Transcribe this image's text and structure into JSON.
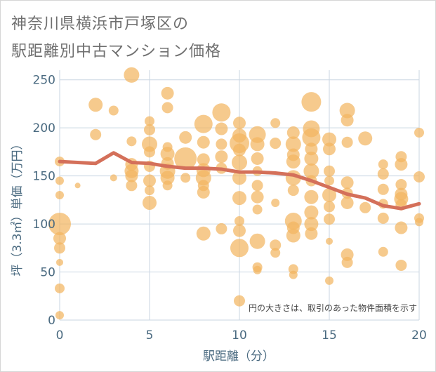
{
  "title_line1": "神奈川県横浜市戸塚区の",
  "title_line2": "駅距離別中古マンション価格",
  "chart_data": {
    "type": "scatter",
    "xlabel": "駅距離（分）",
    "ylabel": "坪（3.3㎡）単価（万円）",
    "xlim": [
      0,
      20
    ],
    "ylim": [
      0,
      260
    ],
    "x_ticks": [
      0,
      5,
      10,
      15,
      20
    ],
    "y_ticks": [
      0,
      50,
      100,
      150,
      200,
      250
    ],
    "grid": true,
    "annotation": "円の大きさは、取引のあった物件面積を示す",
    "colors": {
      "bubble": "#f2b661",
      "line": "#d4705a",
      "grid": "#c9d6e2",
      "text": "#555555",
      "axis_text": "#4a6a80"
    },
    "series": [
      {
        "kind": "bubble",
        "points": [
          {
            "x": 0,
            "y": 165,
            "s": 7
          },
          {
            "x": 0,
            "y": 145,
            "s": 6
          },
          {
            "x": 0,
            "y": 130,
            "s": 6
          },
          {
            "x": 0,
            "y": 100,
            "s": 16
          },
          {
            "x": 0,
            "y": 85,
            "s": 9
          },
          {
            "x": 0,
            "y": 75,
            "s": 8
          },
          {
            "x": 0,
            "y": 60,
            "s": 5
          },
          {
            "x": 0,
            "y": 33,
            "s": 7
          },
          {
            "x": 0,
            "y": 5,
            "s": 6
          },
          {
            "x": 1,
            "y": 140,
            "s": 4
          },
          {
            "x": 2,
            "y": 224,
            "s": 10
          },
          {
            "x": 2,
            "y": 193,
            "s": 8
          },
          {
            "x": 3,
            "y": 218,
            "s": 7
          },
          {
            "x": 3,
            "y": 148,
            "s": 5
          },
          {
            "x": 4,
            "y": 255,
            "s": 11
          },
          {
            "x": 4,
            "y": 186,
            "s": 7
          },
          {
            "x": 4,
            "y": 162,
            "s": 9
          },
          {
            "x": 4,
            "y": 155,
            "s": 10
          },
          {
            "x": 4,
            "y": 150,
            "s": 9
          },
          {
            "x": 4,
            "y": 140,
            "s": 8
          },
          {
            "x": 5,
            "y": 207,
            "s": 7
          },
          {
            "x": 5,
            "y": 198,
            "s": 8
          },
          {
            "x": 5,
            "y": 183,
            "s": 11
          },
          {
            "x": 5,
            "y": 175,
            "s": 8
          },
          {
            "x": 5,
            "y": 160,
            "s": 8
          },
          {
            "x": 5,
            "y": 145,
            "s": 9
          },
          {
            "x": 5,
            "y": 135,
            "s": 7
          },
          {
            "x": 5,
            "y": 122,
            "s": 10
          },
          {
            "x": 6,
            "y": 236,
            "s": 9
          },
          {
            "x": 6,
            "y": 221,
            "s": 8
          },
          {
            "x": 6,
            "y": 180,
            "s": 7
          },
          {
            "x": 6,
            "y": 173,
            "s": 10
          },
          {
            "x": 6,
            "y": 163,
            "s": 9
          },
          {
            "x": 6,
            "y": 155,
            "s": 11
          },
          {
            "x": 6,
            "y": 148,
            "s": 10
          },
          {
            "x": 6,
            "y": 140,
            "s": 7
          },
          {
            "x": 7,
            "y": 190,
            "s": 9
          },
          {
            "x": 7,
            "y": 168,
            "s": 16
          },
          {
            "x": 7,
            "y": 148,
            "s": 7
          },
          {
            "x": 8,
            "y": 204,
            "s": 13
          },
          {
            "x": 8,
            "y": 185,
            "s": 9
          },
          {
            "x": 8,
            "y": 167,
            "s": 9
          },
          {
            "x": 8,
            "y": 156,
            "s": 10
          },
          {
            "x": 8,
            "y": 148,
            "s": 11
          },
          {
            "x": 8,
            "y": 140,
            "s": 8
          },
          {
            "x": 8,
            "y": 133,
            "s": 9
          },
          {
            "x": 8,
            "y": 90,
            "s": 10
          },
          {
            "x": 9,
            "y": 216,
            "s": 13
          },
          {
            "x": 9,
            "y": 199,
            "s": 9
          },
          {
            "x": 9,
            "y": 183,
            "s": 8
          },
          {
            "x": 9,
            "y": 170,
            "s": 9
          },
          {
            "x": 9,
            "y": 158,
            "s": 8
          },
          {
            "x": 9,
            "y": 95,
            "s": 8
          },
          {
            "x": 10,
            "y": 205,
            "s": 9
          },
          {
            "x": 10,
            "y": 192,
            "s": 10
          },
          {
            "x": 10,
            "y": 184,
            "s": 14
          },
          {
            "x": 10,
            "y": 177,
            "s": 9
          },
          {
            "x": 10,
            "y": 164,
            "s": 11
          },
          {
            "x": 10,
            "y": 148,
            "s": 10
          },
          {
            "x": 10,
            "y": 127,
            "s": 10
          },
          {
            "x": 10,
            "y": 103,
            "s": 7
          },
          {
            "x": 10,
            "y": 93,
            "s": 9
          },
          {
            "x": 10,
            "y": 75,
            "s": 13
          },
          {
            "x": 10,
            "y": 20,
            "s": 8
          },
          {
            "x": 11,
            "y": 193,
            "s": 12
          },
          {
            "x": 11,
            "y": 183,
            "s": 10
          },
          {
            "x": 11,
            "y": 168,
            "s": 9
          },
          {
            "x": 11,
            "y": 155,
            "s": 7
          },
          {
            "x": 11,
            "y": 140,
            "s": 8
          },
          {
            "x": 11,
            "y": 128,
            "s": 9
          },
          {
            "x": 11,
            "y": 115,
            "s": 7
          },
          {
            "x": 11,
            "y": 82,
            "s": 11
          },
          {
            "x": 11,
            "y": 55,
            "s": 7
          },
          {
            "x": 11,
            "y": 52,
            "s": 6
          },
          {
            "x": 12,
            "y": 205,
            "s": 7
          },
          {
            "x": 12,
            "y": 184,
            "s": 8
          },
          {
            "x": 12,
            "y": 122,
            "s": 6
          },
          {
            "x": 12,
            "y": 78,
            "s": 8
          },
          {
            "x": 12,
            "y": 70,
            "s": 7
          },
          {
            "x": 13,
            "y": 195,
            "s": 9
          },
          {
            "x": 13,
            "y": 183,
            "s": 11
          },
          {
            "x": 13,
            "y": 172,
            "s": 9
          },
          {
            "x": 13,
            "y": 165,
            "s": 10
          },
          {
            "x": 13,
            "y": 148,
            "s": 11
          },
          {
            "x": 13,
            "y": 135,
            "s": 8
          },
          {
            "x": 13,
            "y": 103,
            "s": 12
          },
          {
            "x": 13,
            "y": 96,
            "s": 9
          },
          {
            "x": 13,
            "y": 88,
            "s": 10
          },
          {
            "x": 13,
            "y": 53,
            "s": 7
          },
          {
            "x": 13,
            "y": 47,
            "s": 6
          },
          {
            "x": 14,
            "y": 227,
            "s": 14
          },
          {
            "x": 14,
            "y": 199,
            "s": 12
          },
          {
            "x": 14,
            "y": 190,
            "s": 13
          },
          {
            "x": 14,
            "y": 178,
            "s": 9
          },
          {
            "x": 14,
            "y": 168,
            "s": 10
          },
          {
            "x": 14,
            "y": 155,
            "s": 11
          },
          {
            "x": 14,
            "y": 145,
            "s": 8
          },
          {
            "x": 14,
            "y": 128,
            "s": 10
          },
          {
            "x": 14,
            "y": 112,
            "s": 10
          },
          {
            "x": 14,
            "y": 100,
            "s": 10
          },
          {
            "x": 14,
            "y": 90,
            "s": 9
          },
          {
            "x": 15,
            "y": 188,
            "s": 10
          },
          {
            "x": 15,
            "y": 178,
            "s": 9
          },
          {
            "x": 15,
            "y": 155,
            "s": 8
          },
          {
            "x": 15,
            "y": 145,
            "s": 7
          },
          {
            "x": 15,
            "y": 130,
            "s": 10
          },
          {
            "x": 15,
            "y": 118,
            "s": 8
          },
          {
            "x": 15,
            "y": 105,
            "s": 8
          },
          {
            "x": 15,
            "y": 82,
            "s": 5
          },
          {
            "x": 15,
            "y": 41,
            "s": 6
          },
          {
            "x": 16,
            "y": 218,
            "s": 11
          },
          {
            "x": 16,
            "y": 208,
            "s": 9
          },
          {
            "x": 16,
            "y": 185,
            "s": 8
          },
          {
            "x": 16,
            "y": 143,
            "s": 9
          },
          {
            "x": 16,
            "y": 132,
            "s": 8
          },
          {
            "x": 16,
            "y": 122,
            "s": 9
          },
          {
            "x": 16,
            "y": 68,
            "s": 9
          },
          {
            "x": 16,
            "y": 60,
            "s": 8
          },
          {
            "x": 17,
            "y": 189,
            "s": 10
          },
          {
            "x": 17,
            "y": 117,
            "s": 8
          },
          {
            "x": 18,
            "y": 162,
            "s": 7
          },
          {
            "x": 18,
            "y": 152,
            "s": 8
          },
          {
            "x": 18,
            "y": 136,
            "s": 8
          },
          {
            "x": 18,
            "y": 121,
            "s": 7
          },
          {
            "x": 18,
            "y": 106,
            "s": 8
          },
          {
            "x": 18,
            "y": 71,
            "s": 7
          },
          {
            "x": 19,
            "y": 170,
            "s": 8
          },
          {
            "x": 19,
            "y": 162,
            "s": 9
          },
          {
            "x": 19,
            "y": 141,
            "s": 8
          },
          {
            "x": 19,
            "y": 131,
            "s": 9
          },
          {
            "x": 19,
            "y": 126,
            "s": 10
          },
          {
            "x": 19,
            "y": 120,
            "s": 8
          },
          {
            "x": 19,
            "y": 96,
            "s": 9
          },
          {
            "x": 19,
            "y": 57,
            "s": 8
          },
          {
            "x": 20,
            "y": 195,
            "s": 7
          },
          {
            "x": 20,
            "y": 149,
            "s": 8
          },
          {
            "x": 20,
            "y": 106,
            "s": 7
          },
          {
            "x": 20,
            "y": 102,
            "s": 6
          }
        ]
      },
      {
        "kind": "line",
        "x": [
          0,
          1,
          2,
          3,
          4,
          5,
          6,
          7,
          8,
          9,
          10,
          11,
          12,
          13,
          14,
          15,
          16,
          17,
          18,
          19,
          20
        ],
        "y": [
          165,
          164,
          163,
          174,
          164,
          163,
          160,
          158,
          158,
          157,
          154,
          154,
          153,
          151,
          145,
          138,
          131,
          127,
          119,
          116,
          121
        ]
      }
    ]
  }
}
